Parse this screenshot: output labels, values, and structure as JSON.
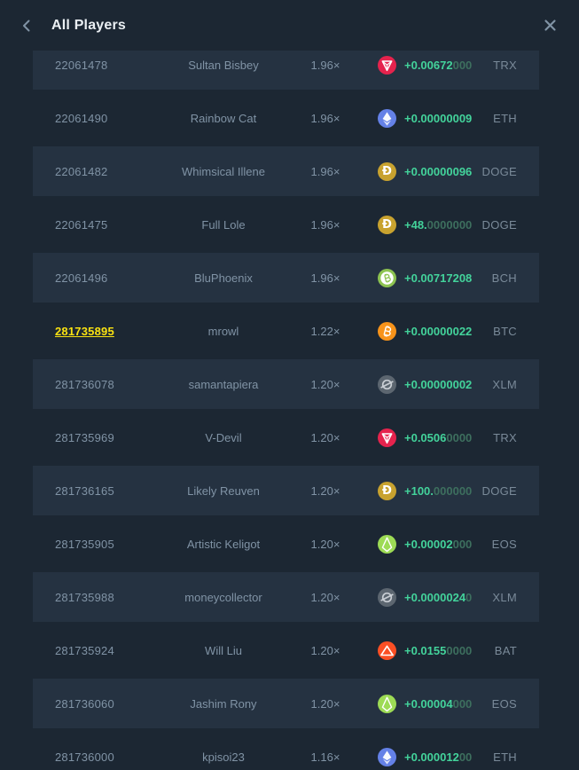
{
  "header": {
    "title": "All Players",
    "back_icon": "chevron-left",
    "close_icon": "x-mark"
  },
  "colors": {
    "bg": "#1c2733",
    "stripe": "#253241",
    "text": "#8093a5",
    "cur": "#7a8a99",
    "title": "#eaeff3",
    "green": "#43d39b",
    "green-dim": "#3d6f5e",
    "yellow": "#f8e112",
    "icon": "#8093a5"
  },
  "coins": {
    "TRX": {
      "color": "#e5234d",
      "glyph": "tron-shard"
    },
    "ETH": {
      "color": "#6481e7",
      "glyph": "ethereum-diamond"
    },
    "DOGE": {
      "color": "#c8a22f",
      "glyph": "doge-d"
    },
    "BCH": {
      "color": "#8dc351",
      "glyph": "bitcoin-cash-b"
    },
    "BTC": {
      "color": "#f7931a",
      "glyph": "bitcoin-b"
    },
    "XLM": {
      "color": "#5c6670",
      "glyph": "stellar-circle-slash",
      "fg": "#c9ced4"
    },
    "EOS": {
      "color": "#9ddb55",
      "glyph": "eos-gem"
    },
    "BAT": {
      "color": "#fb4f24",
      "glyph": "bat-triangle"
    }
  },
  "table": {
    "rows": [
      {
        "id": "22061478",
        "name": "Sultan Bisbey",
        "multiplier": "1.96×",
        "currency": "TRX",
        "amount_bright": "+0.00672",
        "amount_dim": "000",
        "highlighted": false
      },
      {
        "id": "22061490",
        "name": "Rainbow Cat",
        "multiplier": "1.96×",
        "currency": "ETH",
        "amount_bright": "+0.00000009",
        "amount_dim": "",
        "highlighted": false
      },
      {
        "id": "22061482",
        "name": "Whimsical Illene",
        "multiplier": "1.96×",
        "currency": "DOGE",
        "amount_bright": "+0.00000096",
        "amount_dim": "",
        "highlighted": false
      },
      {
        "id": "22061475",
        "name": "Full Lole",
        "multiplier": "1.96×",
        "currency": "DOGE",
        "amount_bright": "+48.",
        "amount_dim": "0000000",
        "highlighted": false
      },
      {
        "id": "22061496",
        "name": "BluPhoenix",
        "multiplier": "1.96×",
        "currency": "BCH",
        "amount_bright": "+0.00717208",
        "amount_dim": "",
        "highlighted": false
      },
      {
        "id": "281735895",
        "name": "mrowl",
        "multiplier": "1.22×",
        "currency": "BTC",
        "amount_bright": "+0.00000022",
        "amount_dim": "",
        "highlighted": true
      },
      {
        "id": "281736078",
        "name": "samantapiera",
        "multiplier": "1.20×",
        "currency": "XLM",
        "amount_bright": "+0.00000002",
        "amount_dim": "",
        "highlighted": false
      },
      {
        "id": "281735969",
        "name": "V-Devil",
        "multiplier": "1.20×",
        "currency": "TRX",
        "amount_bright": "+0.0506",
        "amount_dim": "0000",
        "highlighted": false
      },
      {
        "id": "281736165",
        "name": "Likely Reuven",
        "multiplier": "1.20×",
        "currency": "DOGE",
        "amount_bright": "+100.",
        "amount_dim": "000000",
        "highlighted": false
      },
      {
        "id": "281735905",
        "name": "Artistic Keligot",
        "multiplier": "1.20×",
        "currency": "EOS",
        "amount_bright": "+0.00002",
        "amount_dim": "000",
        "highlighted": false
      },
      {
        "id": "281735988",
        "name": "moneycollector",
        "multiplier": "1.20×",
        "currency": "XLM",
        "amount_bright": "+0.0000024",
        "amount_dim": "0",
        "highlighted": false
      },
      {
        "id": "281735924",
        "name": "Will Liu",
        "multiplier": "1.20×",
        "currency": "BAT",
        "amount_bright": "+0.0155",
        "amount_dim": "0000",
        "highlighted": false
      },
      {
        "id": "281736060",
        "name": "Jashim Rony",
        "multiplier": "1.20×",
        "currency": "EOS",
        "amount_bright": "+0.00004",
        "amount_dim": "000",
        "highlighted": false
      },
      {
        "id": "281736000",
        "name": "kpisoi23",
        "multiplier": "1.16×",
        "currency": "ETH",
        "amount_bright": "+0.000012",
        "amount_dim": "00",
        "highlighted": false
      }
    ]
  }
}
